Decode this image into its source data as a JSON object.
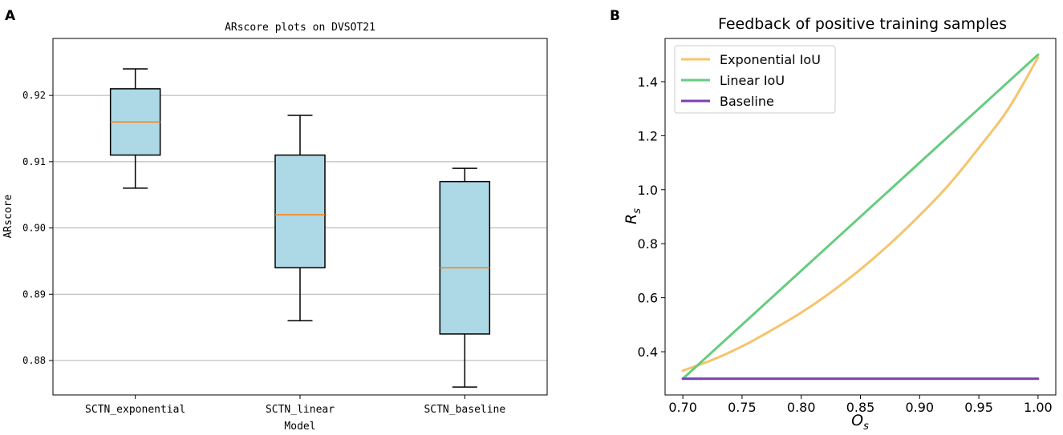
{
  "chart_data": [
    {
      "panel_label": "A",
      "type": "box",
      "title": "ARscore plots on DVSOT21",
      "xlabel": "Model",
      "ylabel": "ARscore",
      "ylim": [
        0.8748,
        0.9286
      ],
      "yticks": [
        0.88,
        0.89,
        0.9,
        0.91,
        0.92
      ],
      "ytick_labels": [
        "0.88",
        "0.89",
        "0.90",
        "0.91",
        "0.92"
      ],
      "grid": "horizontal",
      "categories": [
        "SCTN_exponential",
        "SCTN_linear",
        "SCTN_baseline"
      ],
      "boxes": [
        {
          "name": "SCTN_exponential",
          "whisker_low": 0.906,
          "q1": 0.911,
          "median": 0.916,
          "q3": 0.921,
          "whisker_high": 0.924
        },
        {
          "name": "SCTN_linear",
          "whisker_low": 0.886,
          "q1": 0.894,
          "median": 0.902,
          "q3": 0.911,
          "whisker_high": 0.917
        },
        {
          "name": "SCTN_baseline",
          "whisker_low": 0.876,
          "q1": 0.884,
          "median": 0.894,
          "q3": 0.907,
          "whisker_high": 0.909
        }
      ],
      "colors": {
        "box_fill": "#add8e6",
        "median": "#ff7f0e",
        "grid": "#b0b0b0"
      }
    },
    {
      "panel_label": "B",
      "type": "line",
      "title": "Feedback of positive training samples",
      "xlabel": "O",
      "xlabel_sub": "s",
      "ylabel": "R",
      "ylabel_sub": "s",
      "xlim": [
        0.685,
        1.015
      ],
      "ylim": [
        0.24,
        1.56
      ],
      "xticks": [
        0.7,
        0.75,
        0.8,
        0.85,
        0.9,
        0.95,
        1.0
      ],
      "xtick_labels": [
        "0.70",
        "0.75",
        "0.80",
        "0.85",
        "0.90",
        "0.95",
        "1.00"
      ],
      "yticks": [
        0.4,
        0.6,
        0.8,
        1.0,
        1.2,
        1.4
      ],
      "ytick_labels": [
        "0.4",
        "0.6",
        "0.8",
        "1.0",
        "1.2",
        "1.4"
      ],
      "legend_position": "top-left",
      "series": [
        {
          "name": "Exponential IoU",
          "color": "#f5c46b",
          "x": [
            0.7,
            0.725,
            0.75,
            0.775,
            0.8,
            0.825,
            0.85,
            0.875,
            0.9,
            0.925,
            0.95,
            0.975,
            1.0
          ],
          "y": [
            0.33,
            0.37,
            0.42,
            0.48,
            0.545,
            0.62,
            0.705,
            0.8,
            0.905,
            1.02,
            1.155,
            1.3,
            1.49
          ]
        },
        {
          "name": "Linear IoU",
          "color": "#66cc80",
          "x": [
            0.7,
            1.0
          ],
          "y": [
            0.3,
            1.5
          ]
        },
        {
          "name": "Baseline",
          "color": "#7b3fb0",
          "x": [
            0.7,
            1.0
          ],
          "y": [
            0.3,
            0.3
          ]
        }
      ]
    }
  ]
}
